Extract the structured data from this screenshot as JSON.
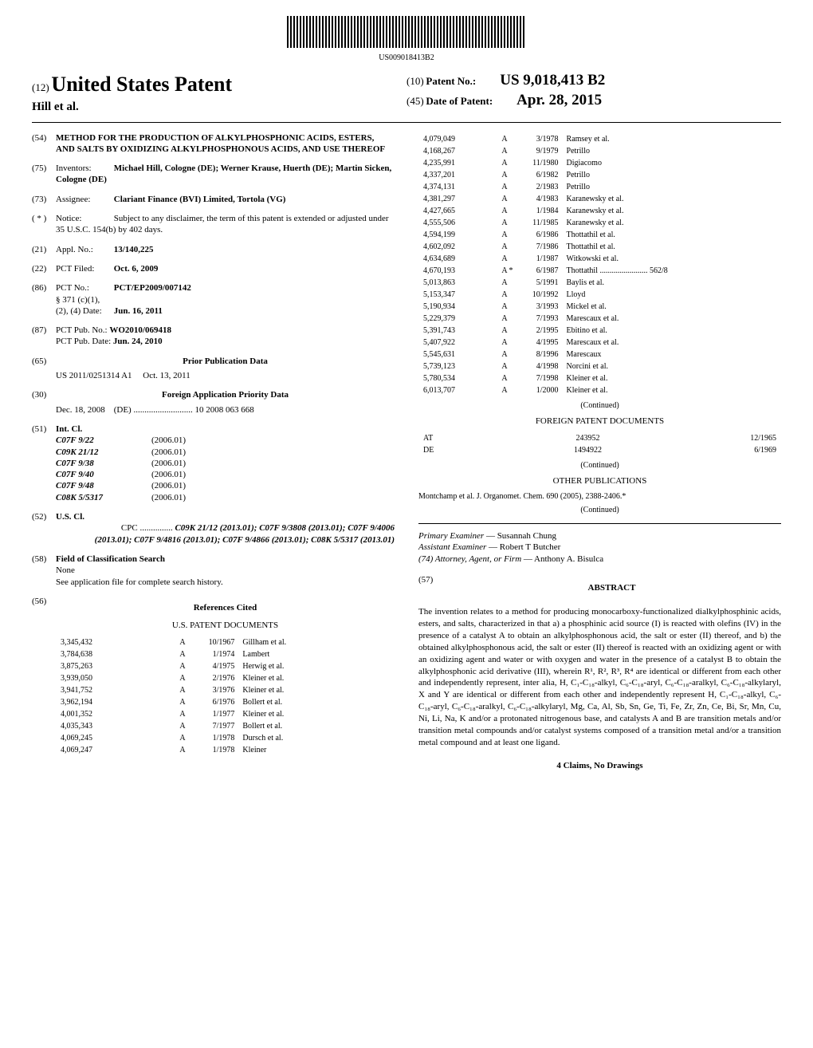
{
  "barcode_number": "US009018413B2",
  "header": {
    "pub_prefix": "(12)",
    "pub_title": "United States Patent",
    "inventors_line": "Hill et al.",
    "patent_no_prefix": "(10)",
    "patent_no_label": "Patent No.:",
    "patent_no_value": "US 9,018,413 B2",
    "date_prefix": "(45)",
    "date_label": "Date of Patent:",
    "date_value": "Apr. 28, 2015"
  },
  "sections": {
    "title_num": "(54)",
    "title_text": "METHOD FOR THE PRODUCTION OF ALKYLPHOSPHONIC ACIDS, ESTERS, AND SALTS BY OXIDIZING ALKYLPHOSPHONOUS ACIDS, AND USE THEREOF",
    "inventors_num": "(75)",
    "inventors_label": "Inventors:",
    "inventors_text": "Michael Hill, Cologne (DE); Werner Krause, Huerth (DE); Martin Sicken, Cologne (DE)",
    "assignee_num": "(73)",
    "assignee_label": "Assignee:",
    "assignee_text": "Clariant Finance (BVI) Limited, Tortola (VG)",
    "notice_num": "( * )",
    "notice_label": "Notice:",
    "notice_text": "Subject to any disclaimer, the term of this patent is extended or adjusted under 35 U.S.C. 154(b) by 402 days.",
    "appl_num": "(21)",
    "appl_label": "Appl. No.:",
    "appl_value": "13/140,225",
    "pct_filed_num": "(22)",
    "pct_filed_label": "PCT Filed:",
    "pct_filed_value": "Oct. 6, 2009",
    "pct_no_num": "(86)",
    "pct_no_label": "PCT No.:",
    "pct_no_value": "PCT/EP2009/007142",
    "pct_371_label": "§ 371 (c)(1),",
    "pct_24_label": "(2), (4) Date:",
    "pct_24_value": "Jun. 16, 2011",
    "pct_pub_num": "(87)",
    "pct_pub_label": "PCT Pub. No.:",
    "pct_pub_value": "WO2010/069418",
    "pct_pub_date_label": "PCT Pub. Date:",
    "pct_pub_date_value": "Jun. 24, 2010",
    "prior_num": "(65)",
    "prior_heading": "Prior Publication Data",
    "prior_pub": "US 2011/0251314 A1",
    "prior_date": "Oct. 13, 2011",
    "foreign_num": "(30)",
    "foreign_heading": "Foreign Application Priority Data",
    "foreign_date": "Dec. 18, 2008",
    "foreign_country": "(DE)",
    "foreign_app": "10 2008 063 668",
    "intcl_num": "(51)",
    "intcl_label": "Int. Cl.",
    "intcl_items": [
      {
        "code": "C07F 9/22",
        "year": "(2006.01)"
      },
      {
        "code": "C09K 21/12",
        "year": "(2006.01)"
      },
      {
        "code": "C07F 9/38",
        "year": "(2006.01)"
      },
      {
        "code": "C07F 9/40",
        "year": "(2006.01)"
      },
      {
        "code": "C07F 9/48",
        "year": "(2006.01)"
      },
      {
        "code": "C08K 5/5317",
        "year": "(2006.01)"
      }
    ],
    "uscl_num": "(52)",
    "uscl_label": "U.S. Cl.",
    "cpc_label": "CPC ...............",
    "cpc_text": "C09K 21/12 (2013.01); C07F 9/3808 (2013.01); C07F 9/4006 (2013.01); C07F 9/4816 (2013.01); C07F 9/4866 (2013.01); C08K 5/5317 (2013.01)",
    "field_num": "(58)",
    "field_label": "Field of Classification Search",
    "field_none": "None",
    "field_text": "See application file for complete search history.",
    "refs_num": "(56)",
    "refs_heading": "References Cited",
    "us_docs_heading": "U.S. PATENT DOCUMENTS"
  },
  "us_patents_left": [
    {
      "num": "3,345,432",
      "type": "A",
      "date": "10/1967",
      "name": "Gillham et al."
    },
    {
      "num": "3,784,638",
      "type": "A",
      "date": "1/1974",
      "name": "Lambert"
    },
    {
      "num": "3,875,263",
      "type": "A",
      "date": "4/1975",
      "name": "Herwig et al."
    },
    {
      "num": "3,939,050",
      "type": "A",
      "date": "2/1976",
      "name": "Kleiner et al."
    },
    {
      "num": "3,941,752",
      "type": "A",
      "date": "3/1976",
      "name": "Kleiner et al."
    },
    {
      "num": "3,962,194",
      "type": "A",
      "date": "6/1976",
      "name": "Bollert et al."
    },
    {
      "num": "4,001,352",
      "type": "A",
      "date": "1/1977",
      "name": "Kleiner et al."
    },
    {
      "num": "4,035,343",
      "type": "A",
      "date": "7/1977",
      "name": "Bollert et al."
    },
    {
      "num": "4,069,245",
      "type": "A",
      "date": "1/1978",
      "name": "Dursch et al."
    },
    {
      "num": "4,069,247",
      "type": "A",
      "date": "1/1978",
      "name": "Kleiner"
    }
  ],
  "us_patents_right": [
    {
      "num": "4,079,049",
      "type": "A",
      "date": "3/1978",
      "name": "Ramsey et al."
    },
    {
      "num": "4,168,267",
      "type": "A",
      "date": "9/1979",
      "name": "Petrillo"
    },
    {
      "num": "4,235,991",
      "type": "A",
      "date": "11/1980",
      "name": "Digiacomo"
    },
    {
      "num": "4,337,201",
      "type": "A",
      "date": "6/1982",
      "name": "Petrillo"
    },
    {
      "num": "4,374,131",
      "type": "A",
      "date": "2/1983",
      "name": "Petrillo"
    },
    {
      "num": "4,381,297",
      "type": "A",
      "date": "4/1983",
      "name": "Karanewsky et al."
    },
    {
      "num": "4,427,665",
      "type": "A",
      "date": "1/1984",
      "name": "Karanewsky et al."
    },
    {
      "num": "4,555,506",
      "type": "A",
      "date": "11/1985",
      "name": "Karanewsky et al."
    },
    {
      "num": "4,594,199",
      "type": "A",
      "date": "6/1986",
      "name": "Thottathil et al."
    },
    {
      "num": "4,602,092",
      "type": "A",
      "date": "7/1986",
      "name": "Thottathil et al."
    },
    {
      "num": "4,634,689",
      "type": "A",
      "date": "1/1987",
      "name": "Witkowski et al."
    },
    {
      "num": "4,670,193",
      "type": "A *",
      "date": "6/1987",
      "name": "Thottathil ........................ 562/8"
    },
    {
      "num": "5,013,863",
      "type": "A",
      "date": "5/1991",
      "name": "Baylis et al."
    },
    {
      "num": "5,153,347",
      "type": "A",
      "date": "10/1992",
      "name": "Lloyd"
    },
    {
      "num": "5,190,934",
      "type": "A",
      "date": "3/1993",
      "name": "Mickel et al."
    },
    {
      "num": "5,229,379",
      "type": "A",
      "date": "7/1993",
      "name": "Marescaux et al."
    },
    {
      "num": "5,391,743",
      "type": "A",
      "date": "2/1995",
      "name": "Ebitino et al."
    },
    {
      "num": "5,407,922",
      "type": "A",
      "date": "4/1995",
      "name": "Marescaux et al."
    },
    {
      "num": "5,545,631",
      "type": "A",
      "date": "8/1996",
      "name": "Marescaux"
    },
    {
      "num": "5,739,123",
      "type": "A",
      "date": "4/1998",
      "name": "Norcini et al."
    },
    {
      "num": "5,780,534",
      "type": "A",
      "date": "7/1998",
      "name": "Kleiner et al."
    },
    {
      "num": "6,013,707",
      "type": "A",
      "date": "1/2000",
      "name": "Kleiner et al."
    }
  ],
  "continued": "(Continued)",
  "foreign_docs_heading": "FOREIGN PATENT DOCUMENTS",
  "foreign_docs": [
    {
      "cc": "AT",
      "num": "243952",
      "date": "12/1965"
    },
    {
      "cc": "DE",
      "num": "1494922",
      "date": "6/1969"
    }
  ],
  "other_pubs_heading": "OTHER PUBLICATIONS",
  "other_pubs_text": "Montchamp et al. J. Organomet. Chem. 690 (2005), 2388-2406.*",
  "examiner": {
    "primary_label": "Primary Examiner",
    "primary_name": "Susannah Chung",
    "assistant_label": "Assistant Examiner",
    "assistant_name": "Robert T Butcher",
    "attorney_label": "(74) Attorney, Agent, or Firm",
    "attorney_name": "Anthony A. Bisulca"
  },
  "abstract": {
    "num": "(57)",
    "heading": "ABSTRACT",
    "text": "The invention relates to a method for producing monocarboxy-functionalized dialkylphosphinic acids, esters, and salts, characterized in that a) a phosphinic acid source (I) is reacted with olefins (IV) in the presence of a catalyst A to obtain an alkylphosphonous acid, the salt or ester (II) thereof, and b) the obtained alkylphosphonous acid, the salt or ester (II) thereof is reacted with an oxidizing agent or with an oxidizing agent and water or with oxygen and water in the presence of a catalyst B to obtain the alkylphosphonic acid derivative (III), wherein R¹, R², R³, R⁴ are identical or different from each other and independently represent, inter alia, H, C₁-C₁₈-alkyl, C₆-C₁₈-aryl, C₆-C₁₈-aralkyl, C₆-C₁₈-alkylaryl, X and Y are identical or different from each other and independently represent H, C₁-C₁₈-alkyl, C₆-C₁₈-aryl, C₆-C₁₈-aralkyl, C₆-C₁₈-alkylaryl, Mg, Ca, Al, Sb, Sn, Ge, Ti, Fe, Zr, Zn, Ce, Bi, Sr, Mn, Cu, Ni, Li, Na, K and/or a protonated nitrogenous base, and catalysts A and B are transition metals and/or transition metal compounds and/or catalyst systems composed of a transition metal and/or a transition metal compound and at least one ligand."
  },
  "claims_line": "4 Claims, No Drawings"
}
